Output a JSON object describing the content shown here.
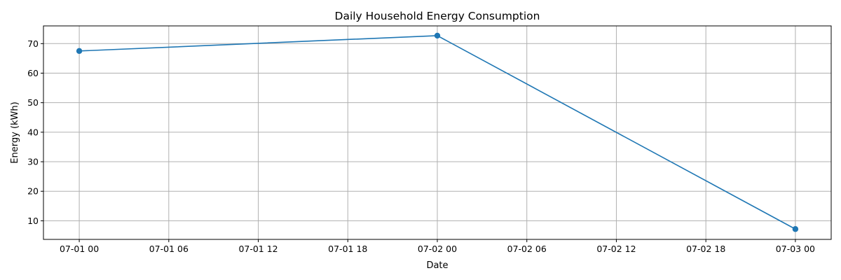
{
  "chart_data": {
    "type": "line",
    "title": "Daily Household Energy Consumption",
    "xlabel": "Date",
    "ylabel": "Energy (kWh)",
    "grid": true,
    "colors": {
      "series": "#1f77b4",
      "grid": "#b0b0b0",
      "axes": "#000000"
    },
    "x_ticks": [
      "07-01 00",
      "07-01 06",
      "07-01 12",
      "07-01 18",
      "07-02 00",
      "07-02 06",
      "07-02 12",
      "07-02 18",
      "07-03 00"
    ],
    "x_range": [
      "2024-06-30T21:36",
      "2024-07-03T02:24"
    ],
    "y_ticks": [
      10,
      20,
      30,
      40,
      50,
      60,
      70
    ],
    "ylim": [
      3.7,
      76.0
    ],
    "series": [
      {
        "marker": "circle",
        "points": [
          {
            "x": "2024-07-01T00:00",
            "y": 67.5
          },
          {
            "x": "2024-07-02T00:00",
            "y": 72.7
          },
          {
            "x": "2024-07-03T00:00",
            "y": 7.2
          }
        ]
      }
    ]
  }
}
